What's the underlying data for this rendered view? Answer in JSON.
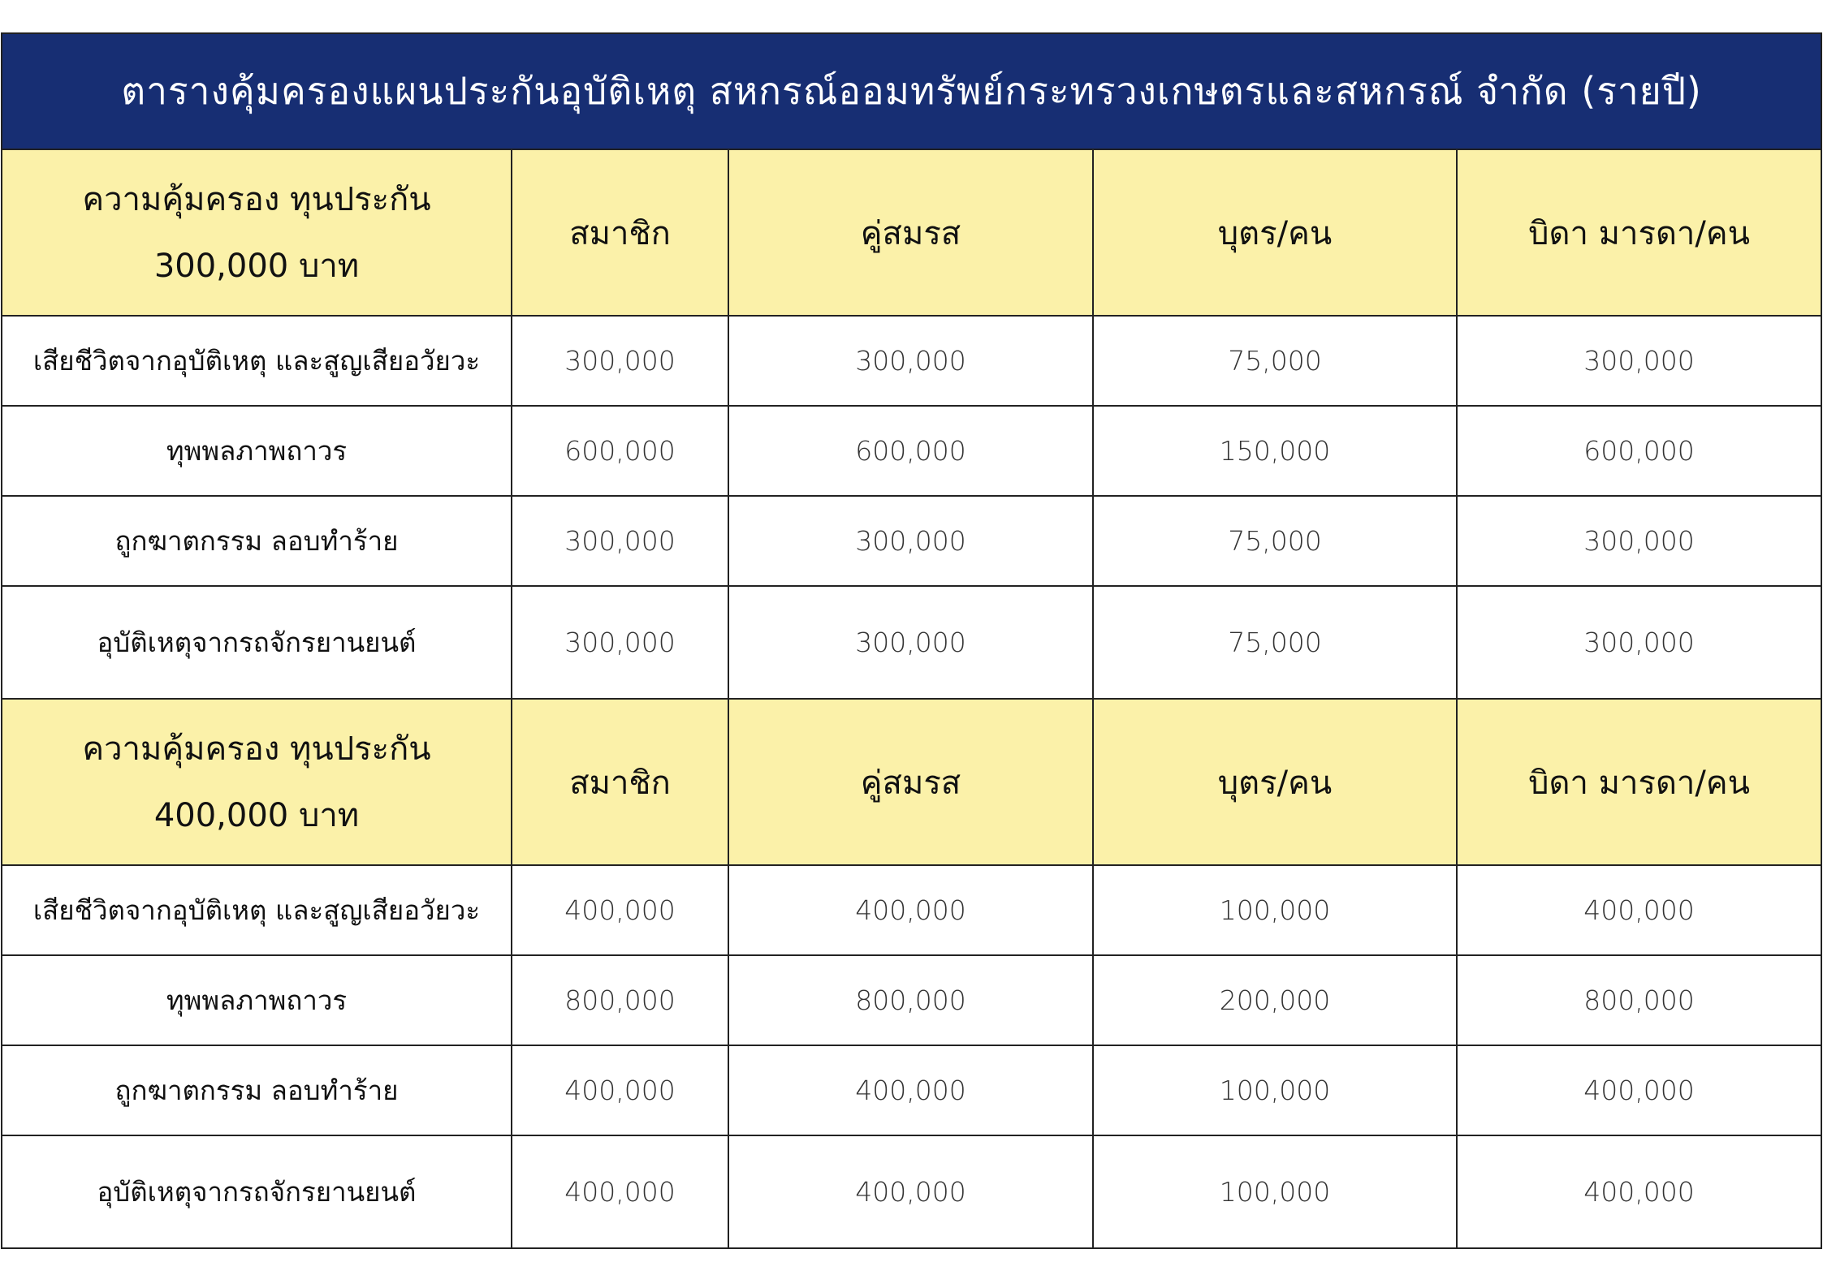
{
  "title": "ตารางคุ้มครองแผนประกันอุบัติเหตุ สหกรณ์ออมทรัพย์กระทรวงเกษตรและสหกรณ์ จำกัด (รายปี)",
  "colors": {
    "title_bg": "#172e73",
    "header_bg": "#fbf1a9"
  },
  "sections": [
    {
      "header": {
        "line1": "ความคุ้มครอง ทุนประกัน",
        "line2": "300,000 บาท",
        "cols": [
          "สมาชิก",
          "คู่สมรส",
          "บุตร/คน",
          "บิดา มารดา/คน"
        ]
      },
      "rows": [
        {
          "label": "เสียชีวิตจากอุบัติเหตุ และสูญเสียอวัยวะ",
          "values": [
            "300,000",
            "300,000",
            "75,000",
            "300,000"
          ]
        },
        {
          "label": "ทุพพลภาพถาวร",
          "values": [
            "600,000",
            "600,000",
            "150,000",
            "600,000"
          ]
        },
        {
          "label": "ถูกฆาตกรรม ลอบทำร้าย",
          "values": [
            "300,000",
            "300,000",
            "75,000",
            "300,000"
          ]
        },
        {
          "label": "อุบัติเหตุจากรถจักรยานยนต์",
          "values": [
            "300,000",
            "300,000",
            "75,000",
            "300,000"
          ]
        }
      ]
    },
    {
      "header": {
        "line1": "ความคุ้มครอง ทุนประกัน",
        "line2": "400,000 บาท",
        "cols": [
          "สมาชิก",
          "คู่สมรส",
          "บุตร/คน",
          "บิดา มารดา/คน"
        ]
      },
      "rows": [
        {
          "label": "เสียชีวิตจากอุบัติเหตุ และสูญเสียอวัยวะ",
          "values": [
            "400,000",
            "400,000",
            "100,000",
            "400,000"
          ]
        },
        {
          "label": "ทุพพลภาพถาวร",
          "values": [
            "800,000",
            "800,000",
            "200,000",
            "800,000"
          ]
        },
        {
          "label": "ถูกฆาตกรรม ลอบทำร้าย",
          "values": [
            "400,000",
            "400,000",
            "100,000",
            "400,000"
          ]
        },
        {
          "label": "อุบัติเหตุจากรถจักรยานยนต์",
          "values": [
            "400,000",
            "400,000",
            "100,000",
            "400,000"
          ]
        }
      ]
    }
  ]
}
